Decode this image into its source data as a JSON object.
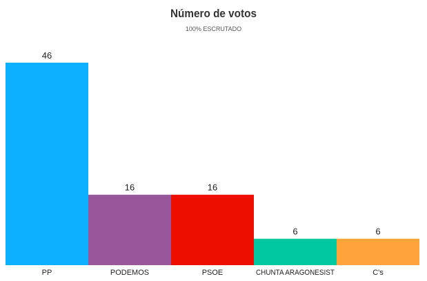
{
  "chart_data": {
    "type": "bar",
    "title": "Número de votos",
    "subtitle": "100% ESCRUTADO",
    "categories": [
      "PP",
      "PODEMOS",
      "PSOE",
      "CHUNTA ARAGONESIST",
      "C's"
    ],
    "values": [
      46,
      16,
      16,
      6,
      6
    ],
    "colors": [
      "#0db0ff",
      "#9a569c",
      "#ee0e00",
      "#00c9a1",
      "#ffa43a"
    ],
    "xlabel": "",
    "ylabel": "",
    "ylim": [
      0,
      46
    ],
    "grid": false,
    "legend": "none"
  }
}
